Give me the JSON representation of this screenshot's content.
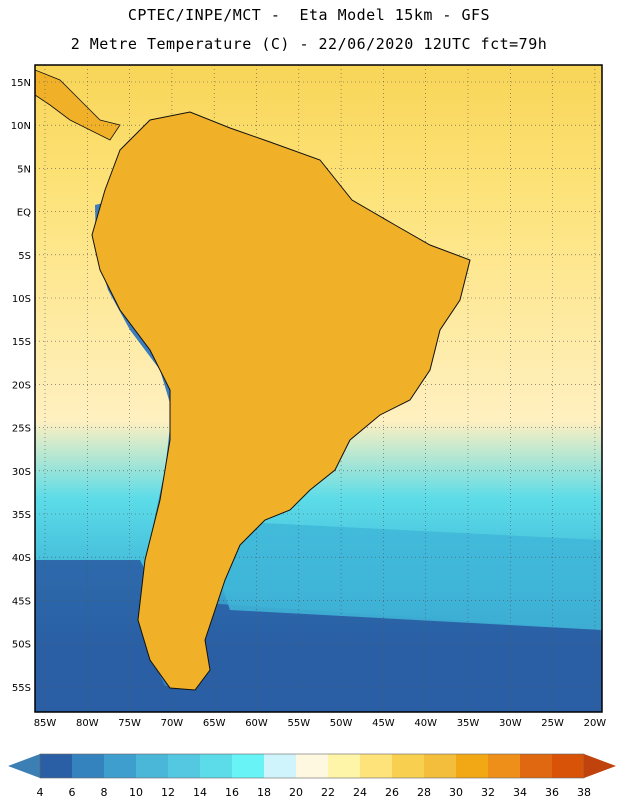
{
  "header": {
    "line1": "CPTEC/INPE/MCT -  Eta Model 15km - GFS",
    "line2": "2 Metre Temperature (C) - 22/06/2020 12UTC fct=79h"
  },
  "lat_labels": [
    "15N",
    "10N",
    "5N",
    "EQ",
    "5S",
    "10S",
    "15S",
    "20S",
    "25S",
    "30S",
    "35S",
    "40S",
    "45S",
    "50S",
    "55S"
  ],
  "lon_labels": [
    "85W",
    "80W",
    "75W",
    "70W",
    "65W",
    "60W",
    "55W",
    "50W",
    "45W",
    "40W",
    "35W",
    "30W",
    "25W",
    "20W"
  ],
  "colorbar": {
    "labels": [
      "4",
      "6",
      "8",
      "10",
      "12",
      "14",
      "16",
      "18",
      "20",
      "22",
      "24",
      "26",
      "28",
      "30",
      "32",
      "34",
      "36",
      "38"
    ],
    "colors": [
      "#2a5fa5",
      "#3583be",
      "#3e9ecd",
      "#4bb7d8",
      "#53c8e0",
      "#5cdce8",
      "#68f4f6",
      "#cff4fb",
      "#fff8e0",
      "#fff5a8",
      "#fde37a",
      "#f8cf4f",
      "#f2be3c",
      "#f2a714",
      "#ee8f1a",
      "#e06810",
      "#d85208",
      "#c83a02"
    ],
    "low_color": "#3c7fb4",
    "high_color": "#c0420d"
  },
  "field_colors": {
    "ocean_north": "#f8d557",
    "ocean_tropic": "#fde37a",
    "ocean_subtrop": "#fff0c0",
    "ocean_mid": "#5cdce8",
    "ocean_cool": "#3fb6d8",
    "ocean_south": "#2a5fa5",
    "land_hot": "#f0b028",
    "land_hotter": "#e89a1e",
    "andes": "#3a7ec0",
    "coastline": "#111111"
  }
}
